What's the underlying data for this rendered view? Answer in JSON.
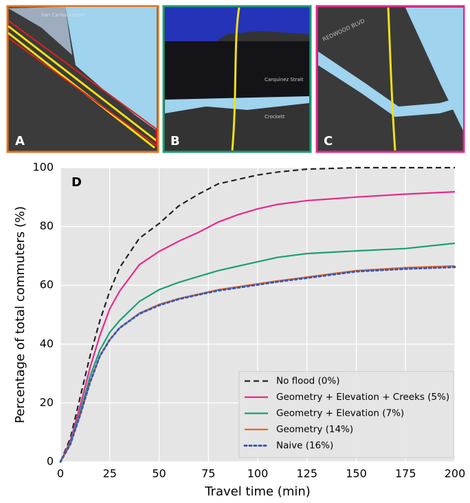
{
  "panels": [
    {
      "label": "A",
      "map_labels": [
        "San Carlos Airport"
      ]
    },
    {
      "label": "B",
      "map_labels": [
        "Carquinez Strait",
        "Crockett"
      ]
    },
    {
      "label": "C",
      "map_labels": [
        "REDWOOD BLVD"
      ]
    }
  ],
  "chart_data": {
    "type": "line",
    "panel_label": "D",
    "x_label": "Travel time (min)",
    "y_label": "Percentage of total commuters (%)",
    "xlim": [
      0,
      200
    ],
    "ylim": [
      0,
      100
    ],
    "xticks": [
      0,
      25,
      50,
      75,
      100,
      125,
      150,
      175,
      200
    ],
    "yticks": [
      0,
      20,
      40,
      60,
      80,
      100
    ],
    "grid": true,
    "legend": "lower right",
    "x": [
      0,
      5,
      10,
      15,
      20,
      25,
      30,
      40,
      50,
      60,
      70,
      80,
      90,
      100,
      110,
      125,
      150,
      175,
      200
    ],
    "series": [
      {
        "name": "No flood (0%)",
        "color": "#222222",
        "style": "dashed",
        "values": [
          0,
          8,
          22,
          36,
          48,
          58,
          66,
          76,
          81,
          87,
          91,
          94.5,
          96,
          97.5,
          98.5,
          99.5,
          100,
          100,
          100
        ]
      },
      {
        "name": "Geometry + Elevation + Creeks (5%)",
        "color": "#e7298a",
        "style": "solid",
        "values": [
          0,
          7,
          19,
          32,
          43,
          52,
          58,
          67,
          71.5,
          75,
          78,
          81.5,
          84,
          86,
          87.5,
          88.8,
          90,
          91,
          91.8
        ]
      },
      {
        "name": "Geometry + Elevation (7%)",
        "color": "#1b9e77",
        "style": "solid",
        "values": [
          0,
          6.5,
          17,
          29,
          38,
          44,
          48,
          54.5,
          58.5,
          61,
          63,
          65,
          66.5,
          68,
          69.5,
          70.8,
          71.7,
          72.5,
          74.3
        ]
      },
      {
        "name": "Geometry (14%)",
        "color": "#e8651f",
        "style": "solid",
        "values": [
          0,
          6,
          16,
          27,
          36,
          41.5,
          45.5,
          50.5,
          53.5,
          55.5,
          57,
          58.5,
          59.5,
          60.5,
          61.5,
          62.8,
          65,
          66,
          66.6
        ]
      },
      {
        "name": "Naive (16%)",
        "color": "#3a58b5",
        "style": "dotted",
        "values": [
          0,
          6,
          16,
          27,
          36,
          41.5,
          45.5,
          50.3,
          53.2,
          55.3,
          56.8,
          58.2,
          59.2,
          60.2,
          61.2,
          62.5,
          64.7,
          65.6,
          66.2
        ]
      }
    ]
  }
}
